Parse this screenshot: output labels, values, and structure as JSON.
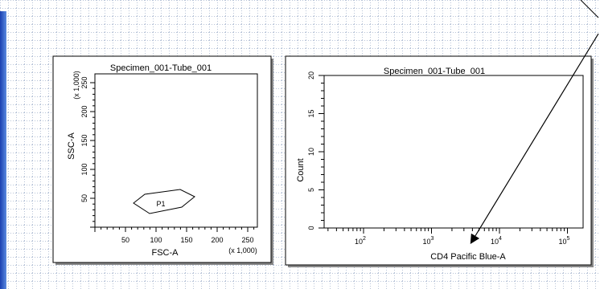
{
  "plots": [
    {
      "title": "Specimen_001-Tube_001",
      "y_label": "SSC-A",
      "y_scale": "(x 1,000)",
      "x_label": "FSC-A",
      "x_scale": "(x 1,000)",
      "y_ticks": [
        "50",
        "100",
        "150",
        "200",
        "250"
      ],
      "x_ticks": [
        "50",
        "100",
        "150",
        "200",
        "250"
      ],
      "gate": "P1"
    },
    {
      "title": "Specimen_001-Tube_001",
      "y_label": "Count",
      "x_label": "CD4 Pacific Blue-A",
      "y_ticks": [
        "0",
        "5",
        "10",
        "15",
        "20"
      ],
      "x_ticks": [
        {
          "base": "10",
          "exp": "2"
        },
        {
          "base": "10",
          "exp": "3"
        },
        {
          "base": "10",
          "exp": "4"
        },
        {
          "base": "10",
          "exp": "5"
        }
      ]
    }
  ]
}
